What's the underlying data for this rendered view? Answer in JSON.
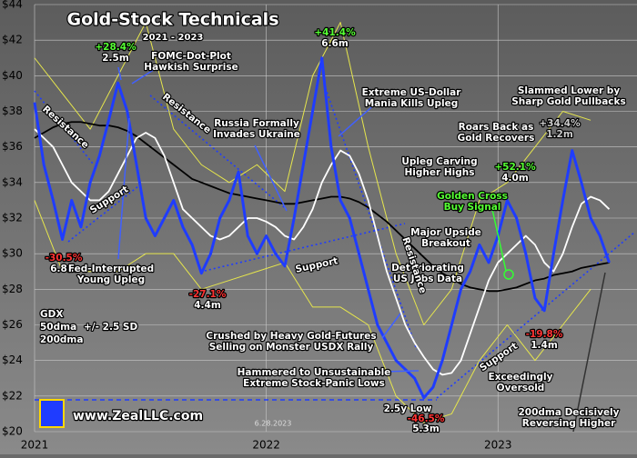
{
  "chart_data": {
    "type": "line",
    "title": "Gold-Stock Technicals",
    "subtitle": "2021 - 2023",
    "site": "www.ZealLLC.com",
    "date": "6.28.2023",
    "x": [
      2021,
      2021.04,
      2021.08,
      2021.12,
      2021.16,
      2021.2,
      2021.24,
      2021.28,
      2021.32,
      2021.36,
      2021.4,
      2021.44,
      2021.48,
      2021.52,
      2021.56,
      2021.6,
      2021.64,
      2021.68,
      2021.72,
      2021.76,
      2021.8,
      2021.84,
      2021.88,
      2021.92,
      2021.96,
      2022,
      2022.04,
      2022.08,
      2022.12,
      2022.16,
      2022.2,
      2022.24,
      2022.28,
      2022.32,
      2022.36,
      2022.4,
      2022.44,
      2022.48,
      2022.52,
      2022.56,
      2022.6,
      2022.64,
      2022.68,
      2022.72,
      2022.76,
      2022.8,
      2022.84,
      2022.88,
      2022.92,
      2022.96,
      2023,
      2023.04,
      2023.08,
      2023.12,
      2023.16,
      2023.2,
      2023.24,
      2023.28,
      2023.32,
      2023.36,
      2023.4,
      2023.44,
      2023.48
    ],
    "series": [
      {
        "name": "GDX",
        "color": "#1f3cff",
        "values": [
          38.5,
          35,
          33,
          30.8,
          33,
          31.5,
          34,
          35.5,
          37.5,
          39.6,
          38,
          35,
          32,
          31,
          32,
          33,
          31.5,
          30.5,
          28.9,
          30,
          32,
          33,
          34.6,
          31,
          30,
          31,
          30,
          29.3,
          32,
          35,
          38,
          41,
          36,
          33,
          32,
          30,
          28,
          26,
          25,
          24,
          23.5,
          23,
          21.9,
          22.5,
          24,
          26,
          28,
          29,
          30.5,
          29.5,
          31,
          33,
          32,
          30,
          27.5,
          26.8,
          30,
          33,
          35.8,
          34,
          32,
          31,
          29.5
        ]
      },
      {
        "name": "50dma",
        "color": "#ffffff",
        "values": [
          37,
          36.5,
          36,
          35,
          34,
          33.5,
          33,
          33,
          33.5,
          34.5,
          35.5,
          36.5,
          36.8,
          36.5,
          35.5,
          34,
          32.5,
          32,
          31.5,
          31,
          30.8,
          31,
          31.5,
          32,
          32,
          31.8,
          31.5,
          31,
          30.8,
          31.5,
          32.5,
          34,
          35,
          35.8,
          35.5,
          34.5,
          33,
          31,
          29,
          27.5,
          26,
          25,
          24.2,
          23.5,
          23.2,
          23.3,
          24,
          25.5,
          27,
          28.5,
          29.5,
          30,
          30.5,
          31,
          30.5,
          29.5,
          29,
          30,
          31.5,
          32.8,
          33.2,
          33,
          32.5
        ]
      },
      {
        "name": "200dma",
        "color": "#000000",
        "values": [
          36.5,
          36.8,
          37.1,
          37.3,
          37.4,
          37.4,
          37.3,
          37.2,
          37.2,
          37.1,
          36.9,
          36.6,
          36.2,
          35.8,
          35.4,
          35,
          34.6,
          34.2,
          34,
          33.8,
          33.6,
          33.4,
          33.3,
          33.2,
          33.1,
          33,
          32.9,
          32.8,
          32.8,
          32.9,
          33,
          33.1,
          33.2,
          33.2,
          33.1,
          32.9,
          32.6,
          32.2,
          31.8,
          31.3,
          30.8,
          30.3,
          29.8,
          29.3,
          28.9,
          28.6,
          28.3,
          28.1,
          28,
          27.9,
          27.9,
          28,
          28.1,
          28.3,
          28.5,
          28.6,
          28.8,
          28.9,
          29,
          29.2,
          29.3,
          29.4,
          29.5
        ]
      }
    ],
    "band": {
      "name": "+/- 2.5 SD",
      "color": "#e6e64c",
      "x": [
        2021,
        2021.12,
        2021.24,
        2021.36,
        2021.48,
        2021.6,
        2021.72,
        2021.84,
        2021.96,
        2022.08,
        2022.2,
        2022.32,
        2022.44,
        2022.56,
        2022.68,
        2022.8,
        2022.92,
        2023.04,
        2023.16,
        2023.28,
        2023.4
      ],
      "upper": [
        41,
        39,
        37,
        40,
        43,
        37,
        35,
        34,
        35,
        33.5,
        40,
        43,
        36,
        30,
        26,
        28,
        33,
        34,
        36,
        38,
        37.5
      ],
      "lower": [
        33,
        29,
        29,
        29,
        30,
        30,
        28,
        28.5,
        29,
        29.5,
        27,
        27,
        26,
        22,
        20.5,
        21,
        24,
        26,
        24,
        26,
        28
      ]
    },
    "xlim": [
      2021,
      2023.6
    ],
    "xticks": [
      2021,
      2022,
      2023
    ],
    "ylim": [
      20,
      44
    ],
    "yticks": [
      {
        "value": 20,
        "label": "$20"
      },
      {
        "value": 22,
        "label": "$22"
      },
      {
        "value": 24,
        "label": "$24"
      },
      {
        "value": 26,
        "label": "$26"
      },
      {
        "value": 28,
        "label": "$28"
      },
      {
        "value": 30,
        "label": "$30"
      },
      {
        "value": 32,
        "label": "$32"
      },
      {
        "value": 34,
        "label": "$34"
      },
      {
        "value": 36,
        "label": "$36"
      },
      {
        "value": 38,
        "label": "$38"
      },
      {
        "value": 40,
        "label": "$40"
      },
      {
        "value": 42,
        "label": "$42"
      },
      {
        "value": 44,
        "label": "$44"
      }
    ],
    "grid": true,
    "annotations": [
      {
        "lines": [
          "+28.4%",
          "2.5m"
        ]
      },
      {
        "lines": [
          "FOMC-Dot-Plot",
          "Hawkish Surprise"
        ]
      },
      {
        "lines": [
          "+41.4%",
          "6.6m"
        ]
      },
      {
        "lines": [
          "Extreme US-Dollar",
          "Mania Kills Upleg"
        ]
      },
      {
        "lines": [
          "Slammed Lower by",
          "Sharp Gold Pullbacks"
        ]
      },
      {
        "lines": [
          "Russia Formally",
          "Invades Ukraine"
        ]
      },
      {
        "lines": [
          "Roars Back as",
          "Gold Recovers"
        ]
      },
      {
        "lines": [
          "+34.4%",
          "1.2m"
        ]
      },
      {
        "lines": [
          "Upleg Carving",
          "Higher Highs"
        ]
      },
      {
        "lines": [
          "+52.1%",
          "4.0m"
        ]
      },
      {
        "lines": [
          "Golden Cross",
          "Buy Signal"
        ]
      },
      {
        "lines": [
          "Major Upside",
          "Breakout"
        ]
      },
      {
        "lines": [
          "Deteriorating",
          "US Jobs Data"
        ]
      },
      {
        "lines": [
          "-30.5%",
          "6.8m"
        ]
      },
      {
        "lines": [
          "Fed-Interrupted",
          "Young Upleg"
        ]
      },
      {
        "lines": [
          "-27.1%",
          "4.4m"
        ]
      },
      {
        "lines": [
          "Crushed by Heavy Gold-Futures",
          "Selling on Monster USDX Rally"
        ]
      },
      {
        "lines": [
          "Hammered to Unsustainable",
          "Extreme Stock-Panic Lows"
        ]
      },
      {
        "lines": [
          "2.5y Low",
          "-46.5%",
          "5.3m"
        ]
      },
      {
        "lines": [
          "-19.8%",
          "1.4m"
        ]
      },
      {
        "lines": [
          "Exceedingly",
          "Oversold"
        ]
      },
      {
        "lines": [
          "200dma Decisively",
          "Reversing Higher"
        ]
      }
    ],
    "trend_labels": [
      "Resistance",
      "Resistance",
      "Resistance",
      "Support",
      "Support",
      "Support",
      "Support"
    ]
  }
}
